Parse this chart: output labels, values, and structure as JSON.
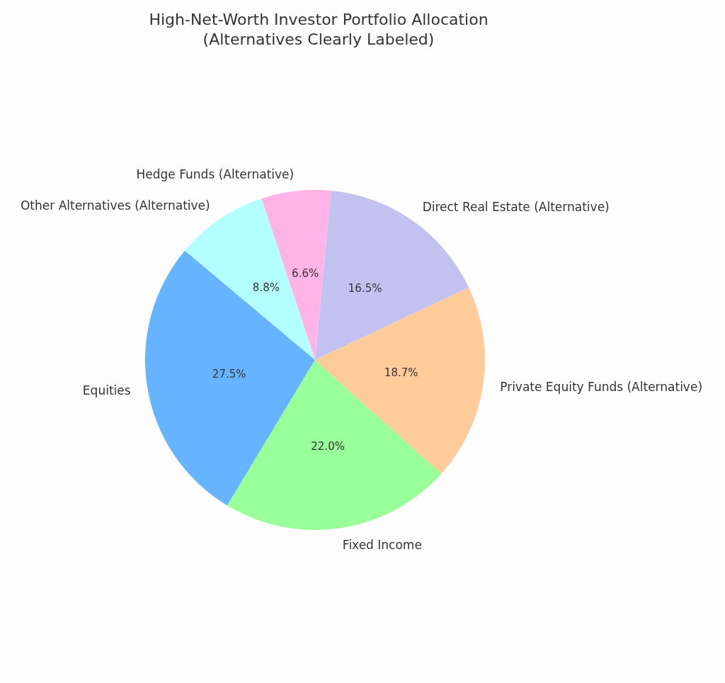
{
  "chart_data": {
    "type": "pie",
    "title": "High-Net-Worth Investor Portfolio Allocation\n(Alternatives Clearly Labeled)",
    "categories": [
      "Equities",
      "Fixed Income",
      "Private Equity Funds (Alternative)",
      "Direct Real Estate (Alternative)",
      "Hedge Funds (Alternative)",
      "Other Alternatives (Alternative)"
    ],
    "values": [
      27.5,
      22.0,
      18.7,
      16.5,
      6.6,
      8.8
    ],
    "colors": [
      "#66b3ff",
      "#99ff99",
      "#ffcc99",
      "#c2c2f0",
      "#ffb3e6",
      "#b3ffff"
    ],
    "value_labels": [
      "27.5%",
      "22.0%",
      "18.7%",
      "16.5%",
      "6.6%",
      "8.8%"
    ],
    "legend": false
  }
}
